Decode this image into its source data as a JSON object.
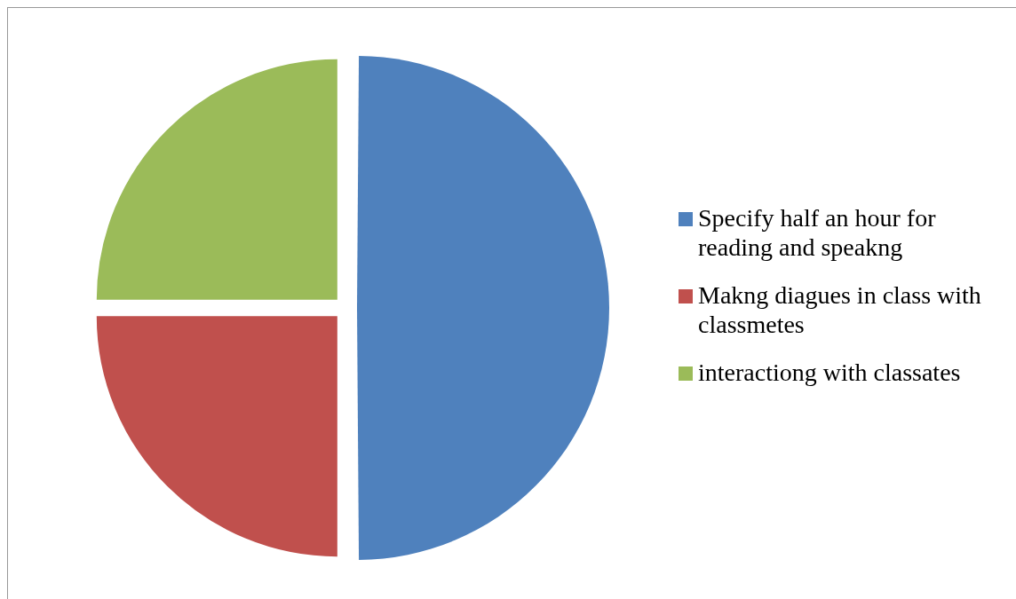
{
  "chart_data": {
    "type": "pie",
    "categories": [
      "Specify half an hour for reading and speakng",
      "Makng diagues in class with classmetes",
      "interactiong with classates"
    ],
    "values": [
      50,
      25,
      25
    ],
    "colors": [
      "#4f81bd",
      "#c0504d",
      "#9bbb59"
    ],
    "legend": "right"
  }
}
